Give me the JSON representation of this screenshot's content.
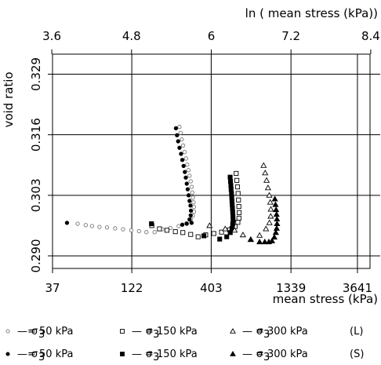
{
  "chart_data": {
    "type": "scatter",
    "title": "",
    "xlabel": "mean stress (kPa)",
    "ylabel": "void ratio",
    "x2label": "ln ( mean stress (kPa))",
    "x_scale": "log",
    "xlim": [
      37,
      4400
    ],
    "ylim": [
      0.2873,
      0.3333
    ],
    "x_ticks": [
      37,
      122,
      403,
      1339,
      3641
    ],
    "x_tick_labels": [
      "37",
      "122",
      "403",
      "1339",
      "3641"
    ],
    "x2_ticks": [
      3.6,
      4.8,
      6,
      7.2,
      8.4
    ],
    "x2_tick_labels": [
      "3.6",
      "4.8",
      "6",
      "7.2",
      "8.4"
    ],
    "y_ticks": [
      0.29,
      0.303,
      0.316,
      0.329
    ],
    "y_tick_labels": [
      "0.290",
      "0.303",
      "0.316",
      "0.329"
    ],
    "grid": true,
    "legend_position": "bottom",
    "legend": [
      {
        "prefix": "—",
        "sigma": "σ",
        "sub": "3",
        "text": "= 50 kPa",
        "marker": "circle-open"
      },
      {
        "prefix": "—",
        "sigma": "σ",
        "sub": "3",
        "text": "= 150 kPa",
        "marker": "square-open"
      },
      {
        "prefix": "—",
        "sigma": "σ",
        "sub": "3",
        "text": "= 300 kPa",
        "marker": "triangle-open"
      },
      {
        "suffix": "(L)"
      },
      {
        "prefix": "—",
        "sigma": "σ",
        "sub": "3",
        "text": "= 50 kPa",
        "marker": "circle-filled"
      },
      {
        "prefix": "—",
        "sigma": "σ",
        "sub": "3",
        "text": "= 150 kPa",
        "marker": "square-filled"
      },
      {
        "prefix": "—",
        "sigma": "σ",
        "sub": "3",
        "text": "= 300 kPa",
        "marker": "triangle-filled"
      },
      {
        "suffix": "(S)"
      }
    ],
    "series": [
      {
        "marker": "circle-open",
        "points": [
          [
            54,
            0.2969
          ],
          [
            61,
            0.2966
          ],
          [
            67,
            0.2964
          ],
          [
            75,
            0.2962
          ],
          [
            84,
            0.2961
          ],
          [
            95,
            0.2959
          ],
          [
            107,
            0.2957
          ],
          [
            121,
            0.2955
          ],
          [
            136,
            0.2953
          ],
          [
            152,
            0.2951
          ],
          [
            172,
            0.2951
          ],
          [
            193,
            0.2957
          ],
          [
            218,
            0.296
          ],
          [
            247,
            0.2964
          ],
          [
            278,
            0.297
          ],
          [
            296,
            0.2978
          ],
          [
            306,
            0.2986
          ],
          [
            311,
            0.2995
          ],
          [
            311,
            0.3005
          ],
          [
            309,
            0.3015
          ],
          [
            306,
            0.3025
          ],
          [
            303,
            0.3036
          ],
          [
            300,
            0.3048
          ],
          [
            296,
            0.306
          ],
          [
            291,
            0.3072
          ],
          [
            286,
            0.3084
          ],
          [
            281,
            0.3096
          ],
          [
            276,
            0.3109
          ],
          [
            270,
            0.3123
          ],
          [
            264,
            0.3137
          ],
          [
            259,
            0.315
          ],
          [
            254,
            0.3164
          ],
          [
            250,
            0.3177
          ]
        ]
      },
      {
        "marker": "circle-filled",
        "points": [
          [
            46,
            0.2971
          ],
          [
            300,
            0.2971
          ],
          [
            279,
            0.2969
          ],
          [
            261,
            0.2967
          ],
          [
            291,
            0.2978
          ],
          [
            296,
            0.2987
          ],
          [
            297,
            0.2997
          ],
          [
            295,
            0.3008
          ],
          [
            291,
            0.3018
          ],
          [
            287,
            0.303
          ],
          [
            283,
            0.3043
          ],
          [
            279,
            0.3055
          ],
          [
            275,
            0.3068
          ],
          [
            271,
            0.308
          ],
          [
            266,
            0.3093
          ],
          [
            261,
            0.3106
          ],
          [
            256,
            0.3119
          ],
          [
            250,
            0.3132
          ],
          [
            245,
            0.3146
          ],
          [
            241,
            0.3159
          ],
          [
            237,
            0.3174
          ]
        ]
      },
      {
        "marker": "square-open",
        "points": [
          [
            165,
            0.2965
          ],
          [
            185,
            0.2958
          ],
          [
            207,
            0.2955
          ],
          [
            235,
            0.2952
          ],
          [
            263,
            0.295
          ],
          [
            296,
            0.2946
          ],
          [
            331,
            0.2941
          ],
          [
            371,
            0.2945
          ],
          [
            419,
            0.2948
          ],
          [
            471,
            0.2951
          ],
          [
            531,
            0.2956
          ],
          [
            578,
            0.2963
          ],
          [
            602,
            0.2972
          ],
          [
            612,
            0.2981
          ],
          [
            614,
            0.2993
          ],
          [
            611,
            0.3006
          ],
          [
            608,
            0.302
          ],
          [
            604,
            0.3034
          ],
          [
            599,
            0.3048
          ],
          [
            593,
            0.3062
          ],
          [
            587,
            0.3077
          ]
        ]
      },
      {
        "marker": "square-filled",
        "points": [
          [
            164,
            0.2969
          ],
          [
            361,
            0.2943
          ],
          [
            458,
            0.2936
          ],
          [
            509,
            0.2941
          ],
          [
            537,
            0.295
          ],
          [
            551,
            0.2959
          ],
          [
            557,
            0.2968
          ],
          [
            560,
            0.2977
          ],
          [
            559,
            0.2985
          ],
          [
            557,
            0.2994
          ],
          [
            555,
            0.3002
          ],
          [
            553,
            0.301
          ],
          [
            551,
            0.3018
          ],
          [
            549,
            0.3026
          ],
          [
            547,
            0.3034
          ],
          [
            544,
            0.3043
          ],
          [
            542,
            0.3051
          ],
          [
            539,
            0.306
          ],
          [
            536,
            0.3069
          ]
        ]
      },
      {
        "marker": "triangle-open",
        "points": [
          [
            393,
            0.2965
          ],
          [
            498,
            0.2958
          ],
          [
            573,
            0.2955
          ],
          [
            650,
            0.2945
          ],
          [
            731,
            0.2935
          ],
          [
            835,
            0.2944
          ],
          [
            919,
            0.2958
          ],
          [
            968,
            0.2971
          ],
          [
            987,
            0.2985
          ],
          [
            989,
            0.3
          ],
          [
            980,
            0.3015
          ],
          [
            966,
            0.303
          ],
          [
            948,
            0.3046
          ],
          [
            928,
            0.3062
          ],
          [
            908,
            0.3078
          ],
          [
            887,
            0.3094
          ]
        ]
      },
      {
        "marker": "triangle-filled",
        "points": [
          [
            731,
            0.2935
          ],
          [
            835,
            0.293
          ],
          [
            903,
            0.293
          ],
          [
            960,
            0.293
          ],
          [
            1006,
            0.2932
          ],
          [
            1042,
            0.294
          ],
          [
            1066,
            0.295
          ],
          [
            1080,
            0.2959
          ],
          [
            1086,
            0.2969
          ],
          [
            1084,
            0.2979
          ],
          [
            1078,
            0.2989
          ],
          [
            1070,
            0.2999
          ],
          [
            1061,
            0.301
          ],
          [
            1051,
            0.3022
          ]
        ]
      }
    ]
  }
}
